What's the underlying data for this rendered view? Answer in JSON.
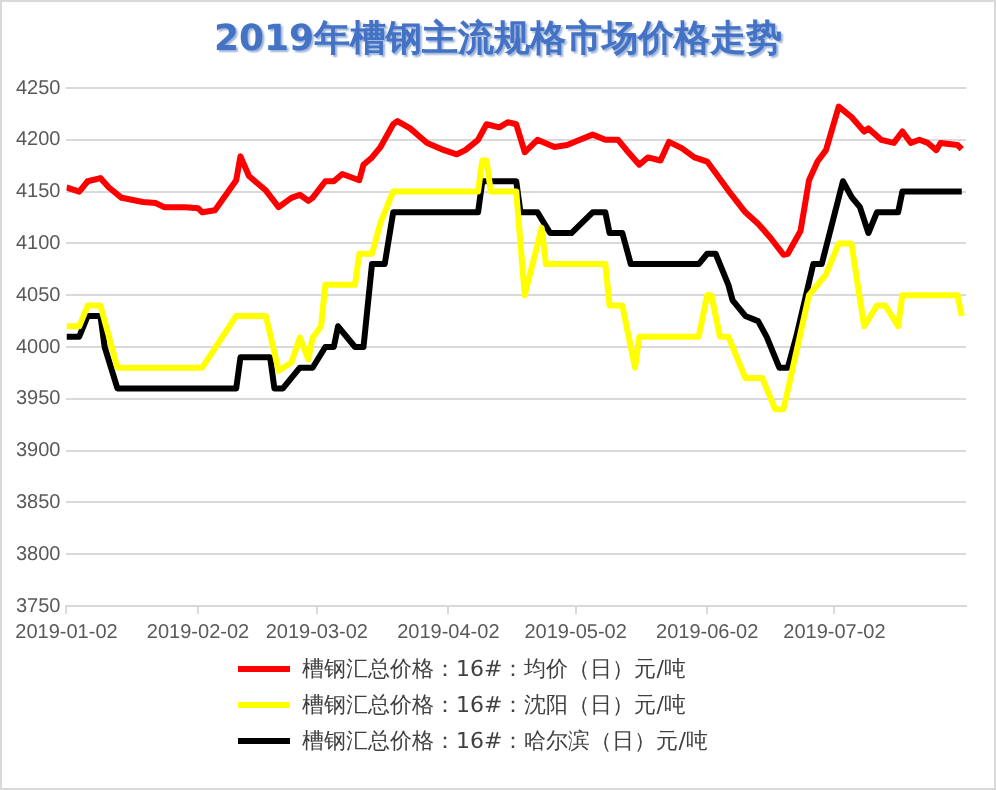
{
  "chart_data": {
    "type": "line",
    "title": "2019年槽钢主流规格市场价格走势",
    "xlim": [
      "2019-01-02",
      "2019-08-02"
    ],
    "xticks": [
      "2019-01-02",
      "2019-02-02",
      "2019-03-02",
      "2019-04-02",
      "2019-05-02",
      "2019-06-02",
      "2019-07-02"
    ],
    "ylim": [
      3750,
      4250
    ],
    "yticks": [
      3750,
      3800,
      3850,
      3900,
      3950,
      4000,
      4050,
      4100,
      4150,
      4200,
      4250
    ],
    "grid": "y",
    "legend": "bottom",
    "series": [
      {
        "name": "槽钢汇总价格：16#：均价（日）元/吨",
        "color": "#ff0000",
        "x": [
          "2019-01-02",
          "2019-01-05",
          "2019-01-07",
          "2019-01-10",
          "2019-01-12",
          "2019-01-15",
          "2019-01-20",
          "2019-01-23",
          "2019-01-25",
          "2019-01-30",
          "2019-02-02",
          "2019-02-03",
          "2019-02-06",
          "2019-02-11",
          "2019-02-12",
          "2019-02-14",
          "2019-02-18",
          "2019-02-21",
          "2019-02-24",
          "2019-02-26",
          "2019-02-28",
          "2019-03-01",
          "2019-03-04",
          "2019-03-06",
          "2019-03-08",
          "2019-03-12",
          "2019-03-13",
          "2019-03-15",
          "2019-03-17",
          "2019-03-20",
          "2019-03-21",
          "2019-03-24",
          "2019-03-26",
          "2019-03-28",
          "2019-04-01",
          "2019-04-04",
          "2019-04-06",
          "2019-04-09",
          "2019-04-11",
          "2019-04-14",
          "2019-04-16",
          "2019-04-18",
          "2019-04-20",
          "2019-04-23",
          "2019-04-27",
          "2019-04-30",
          "2019-05-03",
          "2019-05-06",
          "2019-05-09",
          "2019-05-12",
          "2019-05-14",
          "2019-05-17",
          "2019-05-19",
          "2019-05-22",
          "2019-05-24",
          "2019-05-27",
          "2019-05-30",
          "2019-06-02",
          "2019-06-04",
          "2019-06-07",
          "2019-06-11",
          "2019-06-14",
          "2019-06-17",
          "2019-06-20",
          "2019-06-21",
          "2019-06-24",
          "2019-06-26",
          "2019-06-28",
          "2019-06-30",
          "2019-07-03",
          "2019-07-06",
          "2019-07-09",
          "2019-07-10",
          "2019-07-13",
          "2019-07-16",
          "2019-07-18",
          "2019-07-20",
          "2019-07-22",
          "2019-07-24",
          "2019-07-26",
          "2019-07-27",
          "2019-07-31",
          "2019-08-01"
        ],
        "values": [
          4154,
          4150,
          4160,
          4163,
          4154,
          4144,
          4140,
          4139,
          4135,
          4135,
          4134,
          4130,
          4132,
          4161,
          4184,
          4165,
          4151,
          4135,
          4144,
          4147,
          4141,
          4144,
          4160,
          4160,
          4167,
          4161,
          4176,
          4183,
          4193,
          4215,
          4218,
          4211,
          4204,
          4197,
          4190,
          4186,
          4190,
          4200,
          4215,
          4212,
          4217,
          4215,
          4188,
          4200,
          4193,
          4195,
          4200,
          4205,
          4200,
          4200,
          4190,
          4176,
          4183,
          4180,
          4198,
          4192,
          4183,
          4179,
          4168,
          4151,
          4130,
          4119,
          4105,
          4089,
          4090,
          4112,
          4161,
          4179,
          4190,
          4232,
          4222,
          4208,
          4211,
          4200,
          4197,
          4208,
          4197,
          4200,
          4197,
          4190,
          4197,
          4195,
          4191
        ]
      },
      {
        "name": "槽钢汇总价格：16#：沈阳（日）元/吨",
        "color": "#ffff00",
        "x": [
          "2019-01-02",
          "2019-01-05",
          "2019-01-07",
          "2019-01-10",
          "2019-01-14",
          "2019-02-03",
          "2019-02-11",
          "2019-02-18",
          "2019-02-21",
          "2019-02-24",
          "2019-02-26",
          "2019-02-28",
          "2019-03-01",
          "2019-03-03",
          "2019-03-04",
          "2019-03-11",
          "2019-03-12",
          "2019-03-15",
          "2019-03-17",
          "2019-03-20",
          "2019-04-09",
          "2019-04-10",
          "2019-04-11",
          "2019-04-12",
          "2019-04-18",
          "2019-04-20",
          "2019-04-24",
          "2019-04-25",
          "2019-05-09",
          "2019-05-10",
          "2019-05-13",
          "2019-05-16",
          "2019-05-17",
          "2019-05-31",
          "2019-06-02",
          "2019-06-03",
          "2019-06-05",
          "2019-06-07",
          "2019-06-11",
          "2019-06-15",
          "2019-06-18",
          "2019-06-20",
          "2019-06-23",
          "2019-06-26",
          "2019-06-30",
          "2019-07-03",
          "2019-07-06",
          "2019-07-09",
          "2019-07-12",
          "2019-07-14",
          "2019-07-17",
          "2019-07-18",
          "2019-07-31",
          "2019-08-01"
        ],
        "values": [
          4020,
          4020,
          4040,
          4040,
          3980,
          3980,
          4030,
          4030,
          3977,
          3985,
          4009,
          3988,
          4009,
          4020,
          4060,
          4060,
          4090,
          4090,
          4120,
          4150,
          4150,
          4180,
          4180,
          4150,
          4150,
          4050,
          4115,
          4080,
          4080,
          4040,
          4040,
          3980,
          4010,
          4010,
          4050,
          4050,
          4010,
          4010,
          3970,
          3970,
          3940,
          3940,
          3995,
          4050,
          4070,
          4100,
          4100,
          4020,
          4040,
          4040,
          4020,
          4050,
          4050,
          4030
        ]
      },
      {
        "name": "槽钢汇总价格：16#：哈尔滨（日）元/吨",
        "color": "#000000",
        "x": [
          "2019-01-02",
          "2019-01-05",
          "2019-01-07",
          "2019-01-10",
          "2019-01-11",
          "2019-01-14",
          "2019-02-11",
          "2019-02-12",
          "2019-02-19",
          "2019-02-20",
          "2019-02-22",
          "2019-02-26",
          "2019-03-01",
          "2019-03-04",
          "2019-03-06",
          "2019-03-07",
          "2019-03-11",
          "2019-03-13",
          "2019-03-15",
          "2019-03-18",
          "2019-03-20",
          "2019-04-09",
          "2019-04-10",
          "2019-04-18",
          "2019-04-19",
          "2019-04-23",
          "2019-04-26",
          "2019-05-01",
          "2019-05-06",
          "2019-05-09",
          "2019-05-10",
          "2019-05-13",
          "2019-05-15",
          "2019-05-31",
          "2019-06-02",
          "2019-06-04",
          "2019-06-07",
          "2019-06-08",
          "2019-06-11",
          "2019-06-14",
          "2019-06-16",
          "2019-06-19",
          "2019-06-21",
          "2019-06-23",
          "2019-06-27",
          "2019-06-29",
          "2019-07-04",
          "2019-07-06",
          "2019-07-08",
          "2019-07-10",
          "2019-07-12",
          "2019-07-17",
          "2019-07-18",
          "2019-08-01"
        ],
        "values": [
          4010,
          4010,
          4030,
          4030,
          4000,
          3960,
          3960,
          3990,
          3990,
          3960,
          3960,
          3980,
          3980,
          4000,
          4000,
          4020,
          4000,
          4000,
          4080,
          4080,
          4130,
          4130,
          4160,
          4160,
          4130,
          4130,
          4110,
          4110,
          4130,
          4130,
          4110,
          4110,
          4080,
          4080,
          4090,
          4090,
          4060,
          4045,
          4030,
          4025,
          4010,
          3980,
          3980,
          4010,
          4080,
          4080,
          4160,
          4145,
          4135,
          4110,
          4130,
          4130,
          4150,
          4150
        ]
      }
    ]
  }
}
